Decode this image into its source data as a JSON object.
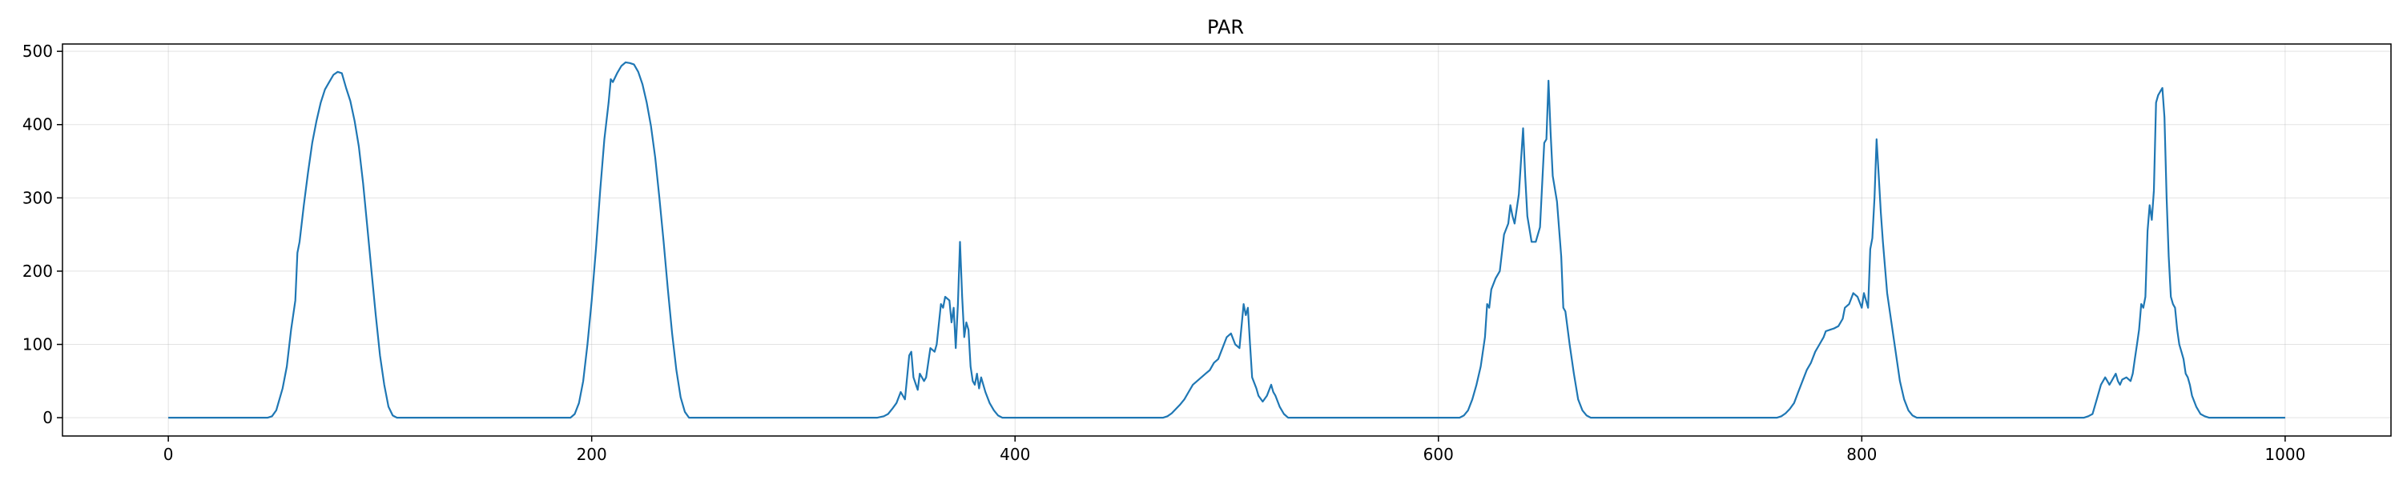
{
  "chart_data": {
    "type": "line",
    "title": "PAR",
    "xlabel": "",
    "ylabel": "",
    "xlim": [
      -50,
      1050
    ],
    "ylim": [
      -25,
      510
    ],
    "xticks": [
      0,
      200,
      400,
      600,
      800,
      1000
    ],
    "yticks": [
      0,
      100,
      200,
      300,
      400,
      500
    ],
    "grid": true,
    "series": [
      {
        "color": "#1f77b4",
        "points": [
          [
            0,
            0
          ],
          [
            47,
            0
          ],
          [
            49,
            2
          ],
          [
            51,
            10
          ],
          [
            54,
            40
          ],
          [
            56,
            70
          ],
          [
            58,
            120
          ],
          [
            60,
            160
          ],
          [
            61,
            225
          ],
          [
            62,
            240
          ],
          [
            64,
            290
          ],
          [
            66,
            335
          ],
          [
            68,
            375
          ],
          [
            70,
            405
          ],
          [
            72,
            430
          ],
          [
            74,
            448
          ],
          [
            76,
            458
          ],
          [
            78,
            468
          ],
          [
            80,
            472
          ],
          [
            82,
            470
          ],
          [
            84,
            450
          ],
          [
            86,
            432
          ],
          [
            88,
            405
          ],
          [
            90,
            370
          ],
          [
            92,
            320
          ],
          [
            94,
            260
          ],
          [
            96,
            200
          ],
          [
            98,
            140
          ],
          [
            100,
            85
          ],
          [
            102,
            45
          ],
          [
            104,
            15
          ],
          [
            106,
            3
          ],
          [
            108,
            0
          ],
          [
            190,
            0
          ],
          [
            192,
            5
          ],
          [
            194,
            20
          ],
          [
            196,
            50
          ],
          [
            198,
            100
          ],
          [
            200,
            160
          ],
          [
            202,
            230
          ],
          [
            204,
            310
          ],
          [
            206,
            380
          ],
          [
            208,
            430
          ],
          [
            209,
            462
          ],
          [
            210,
            458
          ],
          [
            212,
            470
          ],
          [
            214,
            480
          ],
          [
            216,
            485
          ],
          [
            218,
            484
          ],
          [
            220,
            482
          ],
          [
            222,
            472
          ],
          [
            224,
            455
          ],
          [
            226,
            430
          ],
          [
            228,
            398
          ],
          [
            230,
            355
          ],
          [
            232,
            300
          ],
          [
            234,
            240
          ],
          [
            236,
            175
          ],
          [
            238,
            115
          ],
          [
            240,
            65
          ],
          [
            242,
            28
          ],
          [
            244,
            8
          ],
          [
            246,
            0
          ],
          [
            335,
            0
          ],
          [
            338,
            2
          ],
          [
            340,
            5
          ],
          [
            342,
            12
          ],
          [
            344,
            20
          ],
          [
            346,
            35
          ],
          [
            348,
            25
          ],
          [
            350,
            85
          ],
          [
            351,
            90
          ],
          [
            352,
            55
          ],
          [
            354,
            38
          ],
          [
            355,
            60
          ],
          [
            357,
            50
          ],
          [
            358,
            55
          ],
          [
            360,
            95
          ],
          [
            362,
            90
          ],
          [
            363,
            100
          ],
          [
            365,
            155
          ],
          [
            366,
            150
          ],
          [
            367,
            165
          ],
          [
            369,
            160
          ],
          [
            370,
            130
          ],
          [
            371,
            150
          ],
          [
            372,
            95
          ],
          [
            373,
            155
          ],
          [
            374,
            240
          ],
          [
            375,
            165
          ],
          [
            376,
            110
          ],
          [
            377,
            130
          ],
          [
            378,
            120
          ],
          [
            379,
            70
          ],
          [
            380,
            50
          ],
          [
            381,
            45
          ],
          [
            382,
            60
          ],
          [
            383,
            40
          ],
          [
            384,
            55
          ],
          [
            386,
            35
          ],
          [
            388,
            20
          ],
          [
            390,
            10
          ],
          [
            392,
            3
          ],
          [
            394,
            0
          ],
          [
            470,
            0
          ],
          [
            472,
            2
          ],
          [
            474,
            6
          ],
          [
            476,
            12
          ],
          [
            478,
            18
          ],
          [
            480,
            25
          ],
          [
            482,
            35
          ],
          [
            484,
            45
          ],
          [
            486,
            50
          ],
          [
            488,
            55
          ],
          [
            490,
            60
          ],
          [
            492,
            65
          ],
          [
            494,
            75
          ],
          [
            496,
            80
          ],
          [
            498,
            95
          ],
          [
            500,
            110
          ],
          [
            502,
            115
          ],
          [
            504,
            100
          ],
          [
            506,
            95
          ],
          [
            508,
            155
          ],
          [
            509,
            140
          ],
          [
            510,
            150
          ],
          [
            511,
            100
          ],
          [
            512,
            55
          ],
          [
            514,
            40
          ],
          [
            515,
            30
          ],
          [
            517,
            22
          ],
          [
            519,
            30
          ],
          [
            521,
            45
          ],
          [
            522,
            35
          ],
          [
            523,
            30
          ],
          [
            525,
            15
          ],
          [
            527,
            5
          ],
          [
            529,
            0
          ],
          [
            610,
            0
          ],
          [
            612,
            3
          ],
          [
            614,
            10
          ],
          [
            616,
            25
          ],
          [
            618,
            45
          ],
          [
            620,
            70
          ],
          [
            622,
            110
          ],
          [
            623,
            155
          ],
          [
            624,
            150
          ],
          [
            625,
            175
          ],
          [
            627,
            190
          ],
          [
            629,
            200
          ],
          [
            631,
            250
          ],
          [
            633,
            265
          ],
          [
            634,
            290
          ],
          [
            635,
            275
          ],
          [
            636,
            265
          ],
          [
            638,
            305
          ],
          [
            640,
            395
          ],
          [
            641,
            330
          ],
          [
            642,
            275
          ],
          [
            644,
            240
          ],
          [
            646,
            240
          ],
          [
            648,
            260
          ],
          [
            650,
            375
          ],
          [
            651,
            380
          ],
          [
            652,
            460
          ],
          [
            653,
            390
          ],
          [
            654,
            330
          ],
          [
            656,
            295
          ],
          [
            658,
            220
          ],
          [
            659,
            150
          ],
          [
            660,
            145
          ],
          [
            662,
            100
          ],
          [
            664,
            60
          ],
          [
            666,
            25
          ],
          [
            668,
            10
          ],
          [
            670,
            3
          ],
          [
            672,
            0
          ],
          [
            760,
            0
          ],
          [
            762,
            2
          ],
          [
            764,
            6
          ],
          [
            766,
            12
          ],
          [
            768,
            20
          ],
          [
            770,
            35
          ],
          [
            772,
            50
          ],
          [
            774,
            65
          ],
          [
            776,
            75
          ],
          [
            778,
            90
          ],
          [
            780,
            100
          ],
          [
            782,
            110
          ],
          [
            783,
            118
          ],
          [
            785,
            120
          ],
          [
            787,
            122
          ],
          [
            789,
            125
          ],
          [
            791,
            135
          ],
          [
            792,
            150
          ],
          [
            794,
            155
          ],
          [
            796,
            170
          ],
          [
            798,
            165
          ],
          [
            800,
            150
          ],
          [
            801,
            170
          ],
          [
            802,
            160
          ],
          [
            803,
            150
          ],
          [
            804,
            230
          ],
          [
            805,
            245
          ],
          [
            806,
            300
          ],
          [
            807,
            380
          ],
          [
            808,
            330
          ],
          [
            809,
            280
          ],
          [
            810,
            240
          ],
          [
            812,
            170
          ],
          [
            814,
            130
          ],
          [
            816,
            90
          ],
          [
            818,
            50
          ],
          [
            820,
            25
          ],
          [
            822,
            10
          ],
          [
            824,
            3
          ],
          [
            826,
            0
          ],
          [
            905,
            0
          ],
          [
            907,
            2
          ],
          [
            909,
            5
          ],
          [
            911,
            25
          ],
          [
            913,
            45
          ],
          [
            915,
            55
          ],
          [
            916,
            50
          ],
          [
            917,
            45
          ],
          [
            918,
            50
          ],
          [
            920,
            60
          ],
          [
            921,
            50
          ],
          [
            922,
            45
          ],
          [
            923,
            52
          ],
          [
            925,
            55
          ],
          [
            927,
            50
          ],
          [
            928,
            60
          ],
          [
            929,
            80
          ],
          [
            930,
            100
          ],
          [
            931,
            120
          ],
          [
            932,
            155
          ],
          [
            933,
            150
          ],
          [
            934,
            165
          ],
          [
            935,
            255
          ],
          [
            936,
            290
          ],
          [
            937,
            270
          ],
          [
            938,
            310
          ],
          [
            939,
            430
          ],
          [
            940,
            440
          ],
          [
            941,
            445
          ],
          [
            942,
            450
          ],
          [
            943,
            410
          ],
          [
            944,
            300
          ],
          [
            945,
            220
          ],
          [
            946,
            165
          ],
          [
            947,
            155
          ],
          [
            948,
            150
          ],
          [
            949,
            120
          ],
          [
            950,
            100
          ],
          [
            951,
            90
          ],
          [
            952,
            80
          ],
          [
            953,
            60
          ],
          [
            954,
            55
          ],
          [
            955,
            45
          ],
          [
            956,
            30
          ],
          [
            958,
            15
          ],
          [
            960,
            5
          ],
          [
            962,
            2
          ],
          [
            964,
            0
          ],
          [
            1000,
            0
          ]
        ]
      }
    ]
  }
}
